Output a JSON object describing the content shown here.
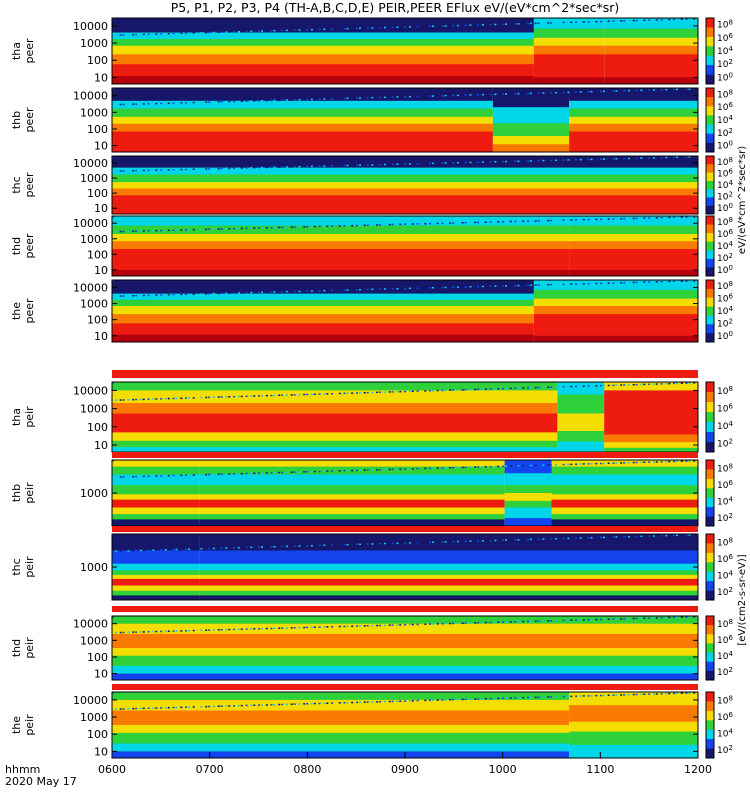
{
  "chart_data": {
    "type": "heatmap",
    "title": "P5, P1, P2, P3, P4 (TH-A,B,C,D,E) PEIR,PEER EFlux eV/(eV*cm^2*sec*sr)",
    "time_label": "hhmm",
    "date_label": "2020 May 17",
    "x_ticks": [
      "0600",
      "0700",
      "0800",
      "0900",
      "1000",
      "1100",
      "1200"
    ],
    "x_range": [
      "0600",
      "1200"
    ],
    "y_scale": "log",
    "colorbar_unit_top": "eV/(eV*cm^2*sec*sr)",
    "colorbar_unit_bottom": "[eV/(cm2-s-sr-eV)]",
    "colorbar_ticks_electron": [
      "10^8",
      "10^6",
      "10^4",
      "10^2",
      "10^0"
    ],
    "colorbar_ticks_ion": [
      "10^8",
      "10^6",
      "10^4",
      "10^2"
    ],
    "panels": [
      {
        "label1": "tha",
        "label2": "peer",
        "y_ticks": [
          "10000",
          "1000",
          "100",
          "10"
        ]
      },
      {
        "label1": "thb",
        "label2": "peer",
        "y_ticks": [
          "10000",
          "1000",
          "100",
          "10"
        ]
      },
      {
        "label1": "thc",
        "label2": "peer",
        "y_ticks": [
          "10000",
          "1000",
          "100",
          "10"
        ]
      },
      {
        "label1": "thd",
        "label2": "peer",
        "y_ticks": [
          "10000",
          "1000",
          "100",
          "10"
        ]
      },
      {
        "label1": "the",
        "label2": "peer",
        "y_ticks": [
          "10000",
          "1000",
          "100",
          "10"
        ]
      },
      {
        "label1": "tha",
        "label2": "peir",
        "y_ticks": [
          "10000",
          "1000",
          "100",
          "10"
        ]
      },
      {
        "label1": "thb",
        "label2": "peir",
        "y_ticks": [
          "1000"
        ]
      },
      {
        "label1": "thc",
        "label2": "peir",
        "y_ticks": [
          "1000"
        ]
      },
      {
        "label1": "thd",
        "label2": "peir",
        "y_ticks": [
          "10000",
          "1000",
          "100",
          "10"
        ]
      },
      {
        "label1": "the",
        "label2": "peir",
        "y_ticks": [
          "10000",
          "1000",
          "100",
          "10"
        ]
      }
    ],
    "colors": {
      "red": "#ee1c10",
      "orange": "#f97a00",
      "yellow": "#f4dd00",
      "green": "#2fd13a",
      "cyan": "#00d6e8",
      "blue": "#1444ee",
      "navy": "#16176b",
      "darkred": "#b4000c"
    }
  }
}
